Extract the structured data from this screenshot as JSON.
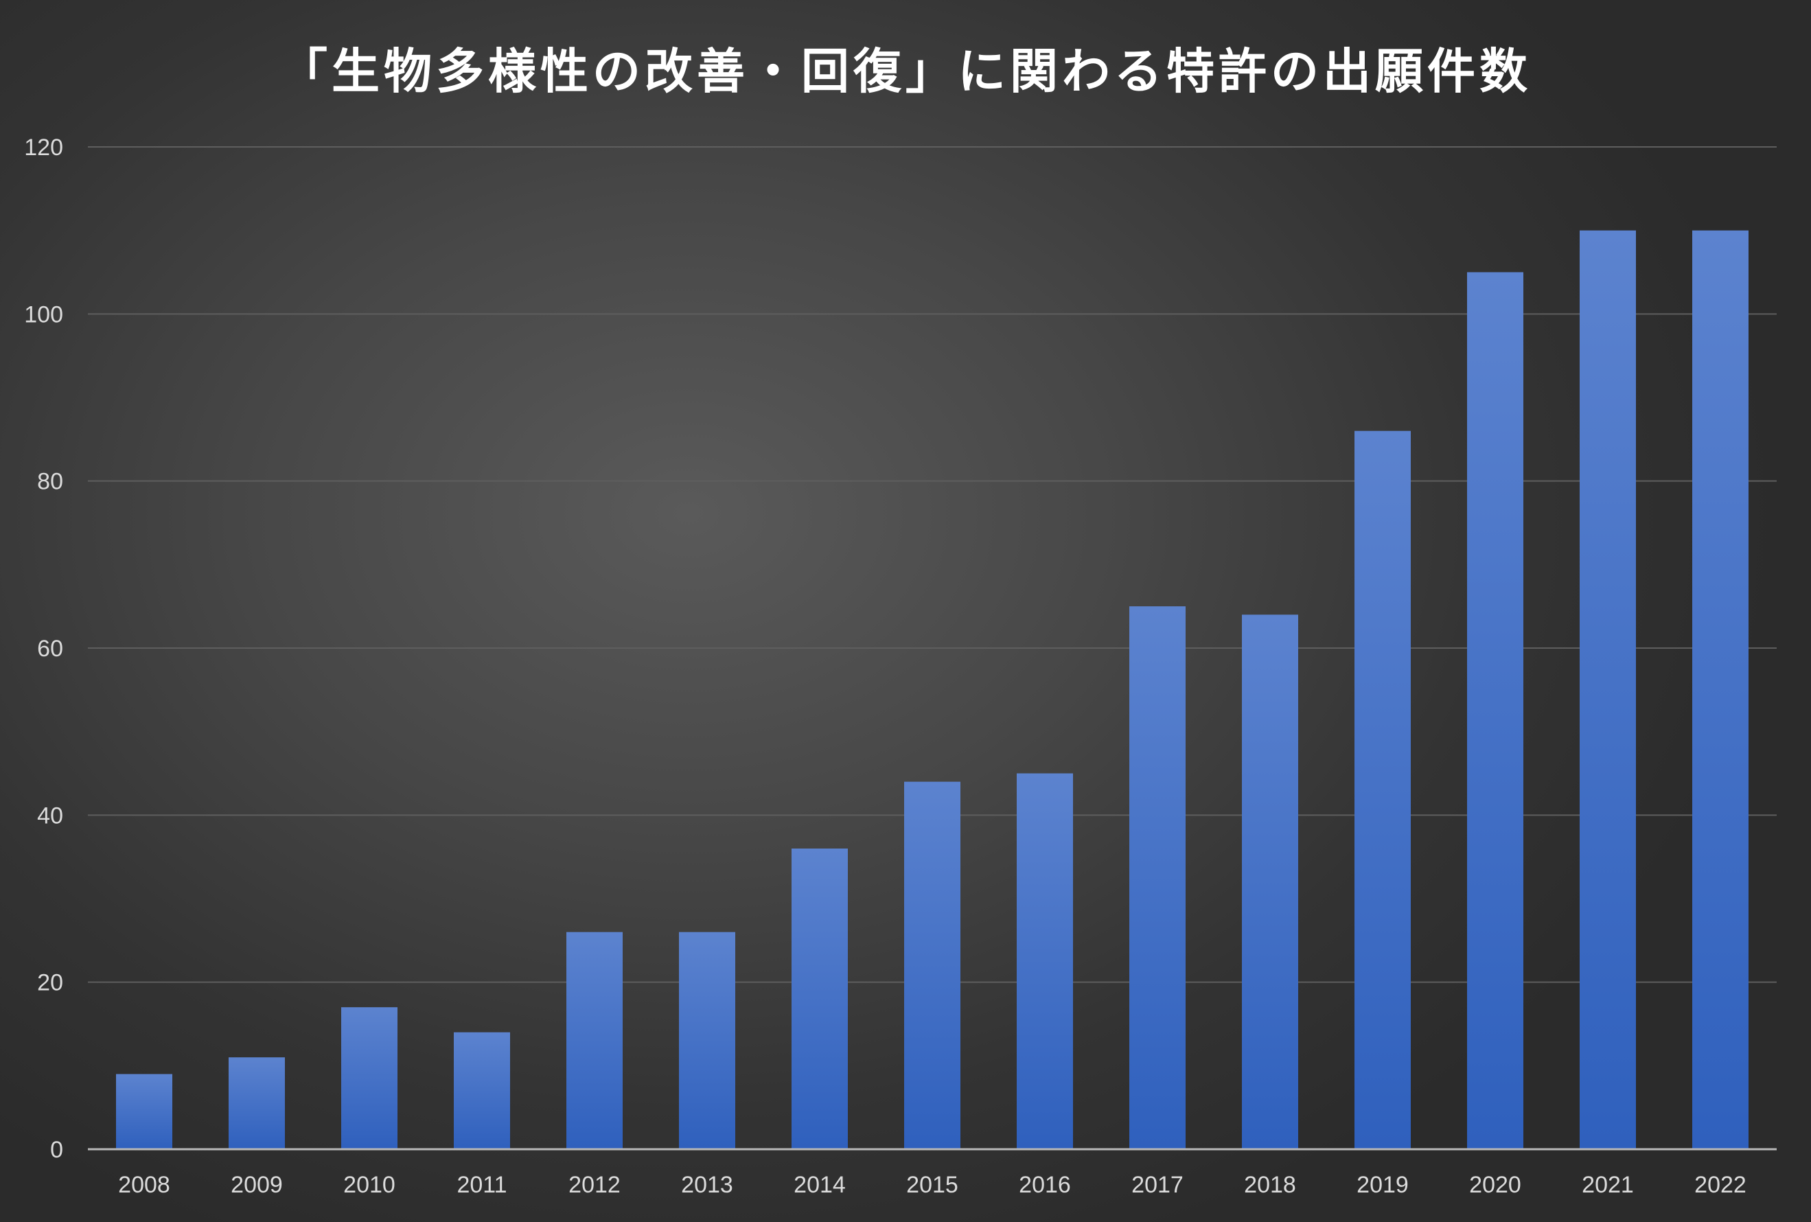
{
  "chart_data": {
    "type": "bar",
    "title": "「生物多様性の改善・回復」に関わる特許の出願件数",
    "xlabel": "",
    "ylabel": "",
    "categories": [
      "2008",
      "2009",
      "2010",
      "2011",
      "2012",
      "2013",
      "2014",
      "2015",
      "2016",
      "2017",
      "2018",
      "2019",
      "2020",
      "2021",
      "2022"
    ],
    "values": [
      9,
      11,
      17,
      14,
      26,
      26,
      36,
      44,
      45,
      65,
      64,
      86,
      105,
      110,
      110
    ],
    "ylim": [
      0,
      120
    ],
    "yticks": [
      0,
      20,
      40,
      60,
      80,
      100,
      120
    ],
    "grid": true,
    "legend": "none",
    "colors": {
      "bar_top": "#5c83cf",
      "bar_bottom": "#2f60bd",
      "gridline": "#5e5e5e",
      "axis_line": "#b9b9b9",
      "tick_text": "#dcdcdc",
      "title_text": "#ffffff"
    }
  }
}
